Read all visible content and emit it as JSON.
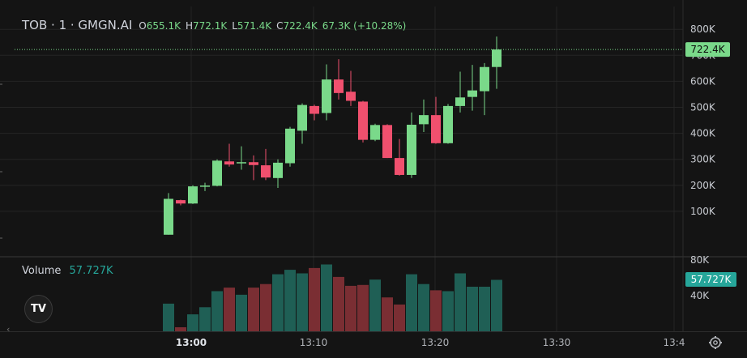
{
  "header": {
    "symbol": "TOB · 1 · GMGN.AI",
    "open_label": "O",
    "open": "655.1K",
    "high_label": "H",
    "high": "772.1K",
    "low_label": "L",
    "low": "571.4K",
    "close_label": "C",
    "close": "722.4K",
    "change": "67.3K (+10.28%)"
  },
  "volume_legend": {
    "label": "Volume",
    "value": "57.727K"
  },
  "logo_text": "TV",
  "icons": {
    "logo": "tradingview-logo-icon",
    "settings": "gear-icon",
    "scroll_left": "chevron-left-icon"
  },
  "colors": {
    "up": "#7ad98a",
    "down": "#f0506e",
    "vol_up": "#1f5f55",
    "vol_down": "#7a2e33",
    "price_tag": "#7ad98a",
    "vol_tag": "#26a69a"
  },
  "chart_data": [
    {
      "type": "candlestick",
      "title": "TOB · 1 · GMGN.AI",
      "x_unit": "minute",
      "x_tick_labels": [
        "13:00",
        "13:10",
        "13:20",
        "13:30",
        "13:4"
      ],
      "y_tick_labels": [
        "100K",
        "200K",
        "300K",
        "400K",
        "500K",
        "600K",
        "700K",
        "800K"
      ],
      "ylim": [
        0,
        840000
      ],
      "last_price_label": "722.4K",
      "last_price": 722400,
      "candles": [
        {
          "t": "12:59",
          "o": 10000,
          "h": 170000,
          "l": 10000,
          "c": 148000
        },
        {
          "t": "13:00",
          "o": 143000,
          "h": 145000,
          "l": 123000,
          "c": 130000
        },
        {
          "t": "13:01",
          "o": 130000,
          "h": 200000,
          "l": 128000,
          "c": 196000
        },
        {
          "t": "13:02",
          "o": 196000,
          "h": 210000,
          "l": 178000,
          "c": 199000
        },
        {
          "t": "13:03",
          "o": 198000,
          "h": 300000,
          "l": 196000,
          "c": 295000
        },
        {
          "t": "13:04",
          "o": 292000,
          "h": 360000,
          "l": 272000,
          "c": 280000
        },
        {
          "t": "13:05",
          "o": 285000,
          "h": 350000,
          "l": 260000,
          "c": 289000
        },
        {
          "t": "13:06",
          "o": 289000,
          "h": 315000,
          "l": 220000,
          "c": 278000
        },
        {
          "t": "13:07",
          "o": 277000,
          "h": 340000,
          "l": 220000,
          "c": 230000
        },
        {
          "t": "13:08",
          "o": 228000,
          "h": 300000,
          "l": 190000,
          "c": 287000
        },
        {
          "t": "13:09",
          "o": 285000,
          "h": 425000,
          "l": 272000,
          "c": 418000
        },
        {
          "t": "13:10",
          "o": 410000,
          "h": 515000,
          "l": 360000,
          "c": 509000
        },
        {
          "t": "13:11",
          "o": 505000,
          "h": 510000,
          "l": 450000,
          "c": 475000
        },
        {
          "t": "13:12",
          "o": 478000,
          "h": 665000,
          "l": 450000,
          "c": 607000
        },
        {
          "t": "13:13",
          "o": 607000,
          "h": 685000,
          "l": 530000,
          "c": 555000
        },
        {
          "t": "13:14",
          "o": 560000,
          "h": 640000,
          "l": 505000,
          "c": 525000
        },
        {
          "t": "13:15",
          "o": 522000,
          "h": 525000,
          "l": 365000,
          "c": 375000
        },
        {
          "t": "13:16",
          "o": 375000,
          "h": 437000,
          "l": 370000,
          "c": 432000
        },
        {
          "t": "13:17",
          "o": 432000,
          "h": 435000,
          "l": 305000,
          "c": 305000
        },
        {
          "t": "13:18",
          "o": 305000,
          "h": 378000,
          "l": 237000,
          "c": 240000
        },
        {
          "t": "13:19",
          "o": 240000,
          "h": 480000,
          "l": 228000,
          "c": 433000
        },
        {
          "t": "13:20",
          "o": 435000,
          "h": 530000,
          "l": 405000,
          "c": 470000
        },
        {
          "t": "13:21",
          "o": 470000,
          "h": 540000,
          "l": 360000,
          "c": 362000
        },
        {
          "t": "13:22",
          "o": 362000,
          "h": 513000,
          "l": 360000,
          "c": 505000
        },
        {
          "t": "13:23",
          "o": 505000,
          "h": 637000,
          "l": 480000,
          "c": 538000
        },
        {
          "t": "13:24",
          "o": 540000,
          "h": 663000,
          "l": 487000,
          "c": 565000
        },
        {
          "t": "13:25",
          "o": 562000,
          "h": 670000,
          "l": 470000,
          "c": 655000
        },
        {
          "t": "13:26",
          "o": 655100,
          "h": 772100,
          "l": 571400,
          "c": 722400
        }
      ]
    },
    {
      "type": "bar",
      "series_name": "Volume",
      "last_value_label": "57.727K",
      "y_tick_labels": [
        "40K",
        "80K"
      ],
      "ylim": [
        0,
        85000
      ],
      "bars": [
        {
          "t": "12:59",
          "v": 31000,
          "up": true
        },
        {
          "t": "13:00",
          "v": 4500,
          "up": false
        },
        {
          "t": "13:01",
          "v": 19000,
          "up": true
        },
        {
          "t": "13:02",
          "v": 27000,
          "up": true
        },
        {
          "t": "13:03",
          "v": 45000,
          "up": true
        },
        {
          "t": "13:04",
          "v": 49000,
          "up": false
        },
        {
          "t": "13:05",
          "v": 41000,
          "up": true
        },
        {
          "t": "13:06",
          "v": 49000,
          "up": false
        },
        {
          "t": "13:07",
          "v": 53000,
          "up": false
        },
        {
          "t": "13:08",
          "v": 64000,
          "up": true
        },
        {
          "t": "13:09",
          "v": 69000,
          "up": true
        },
        {
          "t": "13:10",
          "v": 65000,
          "up": true
        },
        {
          "t": "13:11",
          "v": 71000,
          "up": false
        },
        {
          "t": "13:12",
          "v": 75000,
          "up": true
        },
        {
          "t": "13:13",
          "v": 61000,
          "up": false
        },
        {
          "t": "13:14",
          "v": 51000,
          "up": false
        },
        {
          "t": "13:15",
          "v": 52000,
          "up": false
        },
        {
          "t": "13:16",
          "v": 58000,
          "up": true
        },
        {
          "t": "13:17",
          "v": 38000,
          "up": false
        },
        {
          "t": "13:18",
          "v": 30000,
          "up": false
        },
        {
          "t": "13:19",
          "v": 64000,
          "up": true
        },
        {
          "t": "13:20",
          "v": 53000,
          "up": true
        },
        {
          "t": "13:21",
          "v": 46000,
          "up": false
        },
        {
          "t": "13:22",
          "v": 45000,
          "up": true
        },
        {
          "t": "13:23",
          "v": 65000,
          "up": true
        },
        {
          "t": "13:24",
          "v": 50000,
          "up": true
        },
        {
          "t": "13:25",
          "v": 50000,
          "up": true
        },
        {
          "t": "13:26",
          "v": 57727,
          "up": true
        }
      ]
    }
  ]
}
